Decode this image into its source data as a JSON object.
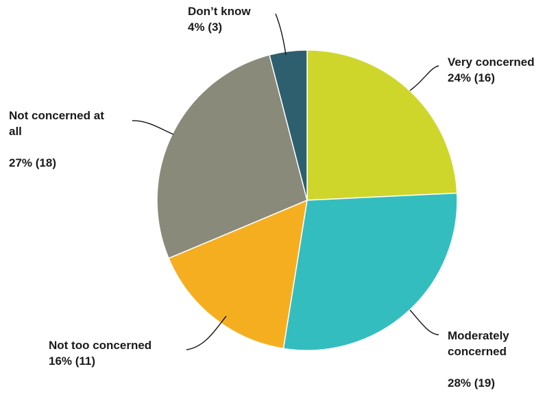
{
  "chart_data": {
    "type": "pie",
    "title": "",
    "slices": [
      {
        "name": "Very concerned",
        "percent": 24,
        "count": 16,
        "label_lines": [
          "Very concerned",
          "24% (16)"
        ],
        "color": "#cfd62b"
      },
      {
        "name": "Moderately concerned",
        "percent": 28,
        "count": 19,
        "label_lines": [
          "Moderately",
          "concerned",
          "",
          "28% (19)"
        ],
        "color": "#34bdbf"
      },
      {
        "name": "Not too concerned",
        "percent": 16,
        "count": 11,
        "label_lines": [
          "Not too concerned",
          "16% (11)"
        ],
        "color": "#f6ae21"
      },
      {
        "name": "Not concerned at all",
        "percent": 27,
        "count": 18,
        "label_lines": [
          "Not concerned at",
          "all",
          "",
          "27% (18)"
        ],
        "color": "#898a7a"
      },
      {
        "name": "Don’t know",
        "percent": 4,
        "count": 3,
        "label_lines": [
          "Don’t know",
          "4% (3)"
        ],
        "color": "#2e5f6f"
      }
    ],
    "start": "12 o'clock",
    "direction": "clockwise",
    "legend": "none",
    "slice_border_color": "#ffffff"
  }
}
